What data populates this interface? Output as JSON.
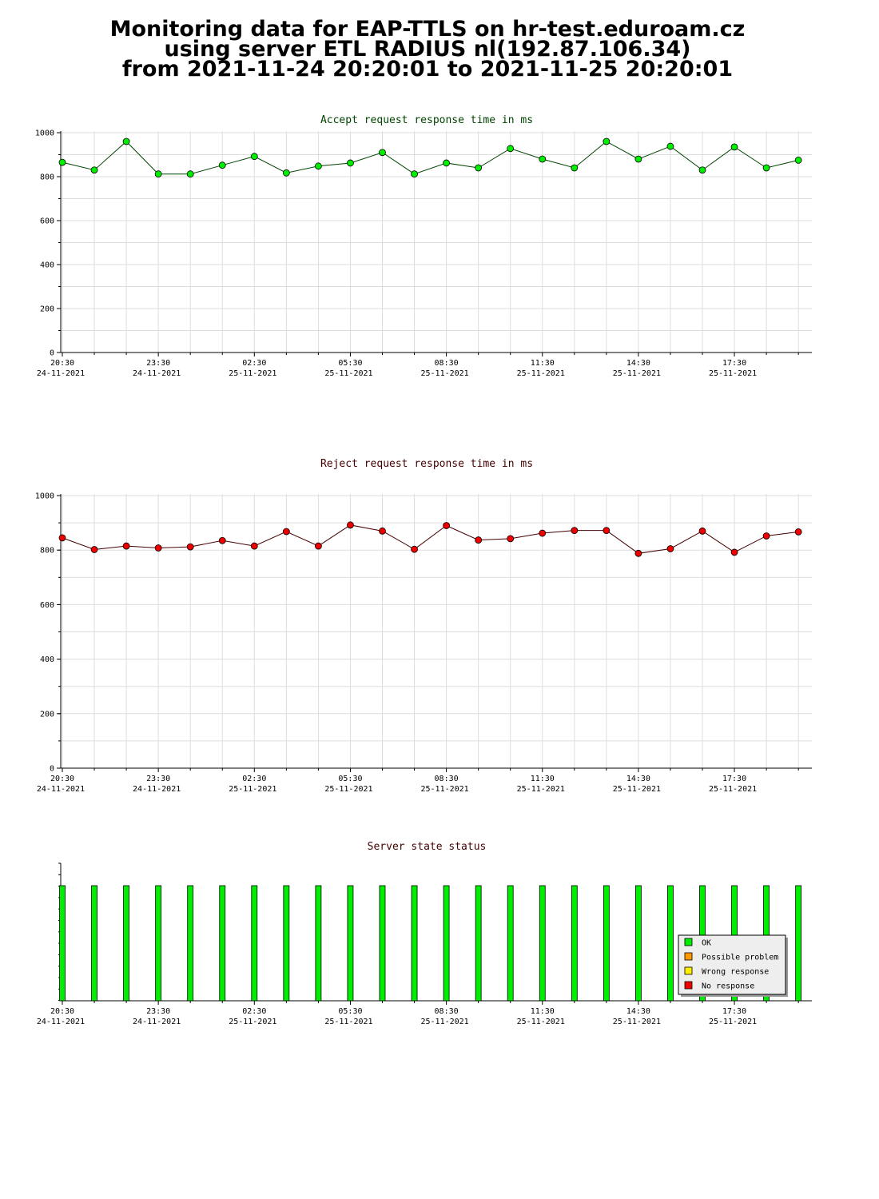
{
  "header": {
    "line1": "Monitoring data for EAP-TTLS on hr-test.eduroam.cz",
    "line2": "using server ETL RADIUS nl(192.87.106.34)",
    "line3": "from 2021-11-24 20:20:01 to 2021-11-25 20:20:01"
  },
  "colors": {
    "accept_line": "#004400",
    "accept_marker": "#00ee00",
    "reject_line": "#440000",
    "reject_marker": "#ee0000",
    "accept_title": "#004400",
    "reject_title": "#440000",
    "state_title": "#440000",
    "grid": "#dddddd",
    "ok": "#00ee00",
    "possible_problem": "#ff9900",
    "wrong_response": "#ffee00",
    "no_response": "#ee0000"
  },
  "x_ticks": [
    {
      "time": "20:30",
      "date": "24-11-2021"
    },
    {
      "time": "23:30",
      "date": "24-11-2021"
    },
    {
      "time": "02:30",
      "date": "25-11-2021"
    },
    {
      "time": "05:30",
      "date": "25-11-2021"
    },
    {
      "time": "08:30",
      "date": "25-11-2021"
    },
    {
      "time": "11:30",
      "date": "25-11-2021"
    },
    {
      "time": "14:30",
      "date": "25-11-2021"
    },
    {
      "time": "17:30",
      "date": "25-11-2021"
    }
  ],
  "chart_data": [
    {
      "type": "line",
      "title": "Accept request response time in ms",
      "x": [
        "2021-11-24 20:30",
        "2021-11-24 21:30",
        "2021-11-24 22:30",
        "2021-11-24 23:30",
        "2021-11-25 00:30",
        "2021-11-25 01:30",
        "2021-11-25 02:30",
        "2021-11-25 03:30",
        "2021-11-25 04:30",
        "2021-11-25 05:30",
        "2021-11-25 06:30",
        "2021-11-25 07:30",
        "2021-11-25 08:30",
        "2021-11-25 09:30",
        "2021-11-25 10:30",
        "2021-11-25 11:30",
        "2021-11-25 12:30",
        "2021-11-25 13:30",
        "2021-11-25 14:30",
        "2021-11-25 15:30",
        "2021-11-25 16:30",
        "2021-11-25 17:30",
        "2021-11-25 18:30",
        "2021-11-25 19:30"
      ],
      "values": [
        865,
        830,
        960,
        812,
        812,
        852,
        892,
        817,
        848,
        862,
        910,
        812,
        862,
        840,
        928,
        880,
        840,
        960,
        880,
        938,
        830,
        935,
        840,
        875
      ],
      "ylim": [
        0,
        1000
      ],
      "yticks": [
        0,
        200,
        400,
        600,
        800,
        1000
      ],
      "grid": true
    },
    {
      "type": "line",
      "title": "Reject request response time in ms",
      "x": [
        "2021-11-24 20:30",
        "2021-11-24 21:30",
        "2021-11-24 22:30",
        "2021-11-24 23:30",
        "2021-11-25 00:30",
        "2021-11-25 01:30",
        "2021-11-25 02:30",
        "2021-11-25 03:30",
        "2021-11-25 04:30",
        "2021-11-25 05:30",
        "2021-11-25 06:30",
        "2021-11-25 07:30",
        "2021-11-25 08:30",
        "2021-11-25 09:30",
        "2021-11-25 10:30",
        "2021-11-25 11:30",
        "2021-11-25 12:30",
        "2021-11-25 13:30",
        "2021-11-25 14:30",
        "2021-11-25 15:30",
        "2021-11-25 16:30",
        "2021-11-25 17:30",
        "2021-11-25 18:30",
        "2021-11-25 19:30"
      ],
      "values": [
        845,
        802,
        815,
        808,
        812,
        835,
        815,
        868,
        815,
        892,
        870,
        803,
        890,
        837,
        842,
        862,
        872,
        872,
        788,
        805,
        870,
        792,
        852,
        867
      ],
      "ylim": [
        0,
        1000
      ],
      "yticks": [
        0,
        200,
        400,
        600,
        800,
        1000
      ],
      "grid": true
    },
    {
      "type": "bar",
      "title": "Server state status",
      "x": [
        "2021-11-24 20:30",
        "2021-11-24 21:30",
        "2021-11-24 22:30",
        "2021-11-24 23:30",
        "2021-11-25 00:30",
        "2021-11-25 01:30",
        "2021-11-25 02:30",
        "2021-11-25 03:30",
        "2021-11-25 04:30",
        "2021-11-25 05:30",
        "2021-11-25 06:30",
        "2021-11-25 07:30",
        "2021-11-25 08:30",
        "2021-11-25 09:30",
        "2021-11-25 10:30",
        "2021-11-25 11:30",
        "2021-11-25 12:30",
        "2021-11-25 13:30",
        "2021-11-25 14:30",
        "2021-11-25 15:30",
        "2021-11-25 16:30",
        "2021-11-25 17:30",
        "2021-11-25 18:30",
        "2021-11-25 19:30"
      ],
      "states": [
        "OK",
        "OK",
        "OK",
        "OK",
        "OK",
        "OK",
        "OK",
        "OK",
        "OK",
        "OK",
        "OK",
        "OK",
        "OK",
        "OK",
        "OK",
        "OK",
        "OK",
        "OK",
        "OK",
        "OK",
        "OK",
        "OK",
        "OK",
        "OK"
      ],
      "legend": [
        "OK",
        "Possible problem",
        "Wrong response",
        "No response"
      ],
      "legend_position": "bottom-right"
    }
  ]
}
